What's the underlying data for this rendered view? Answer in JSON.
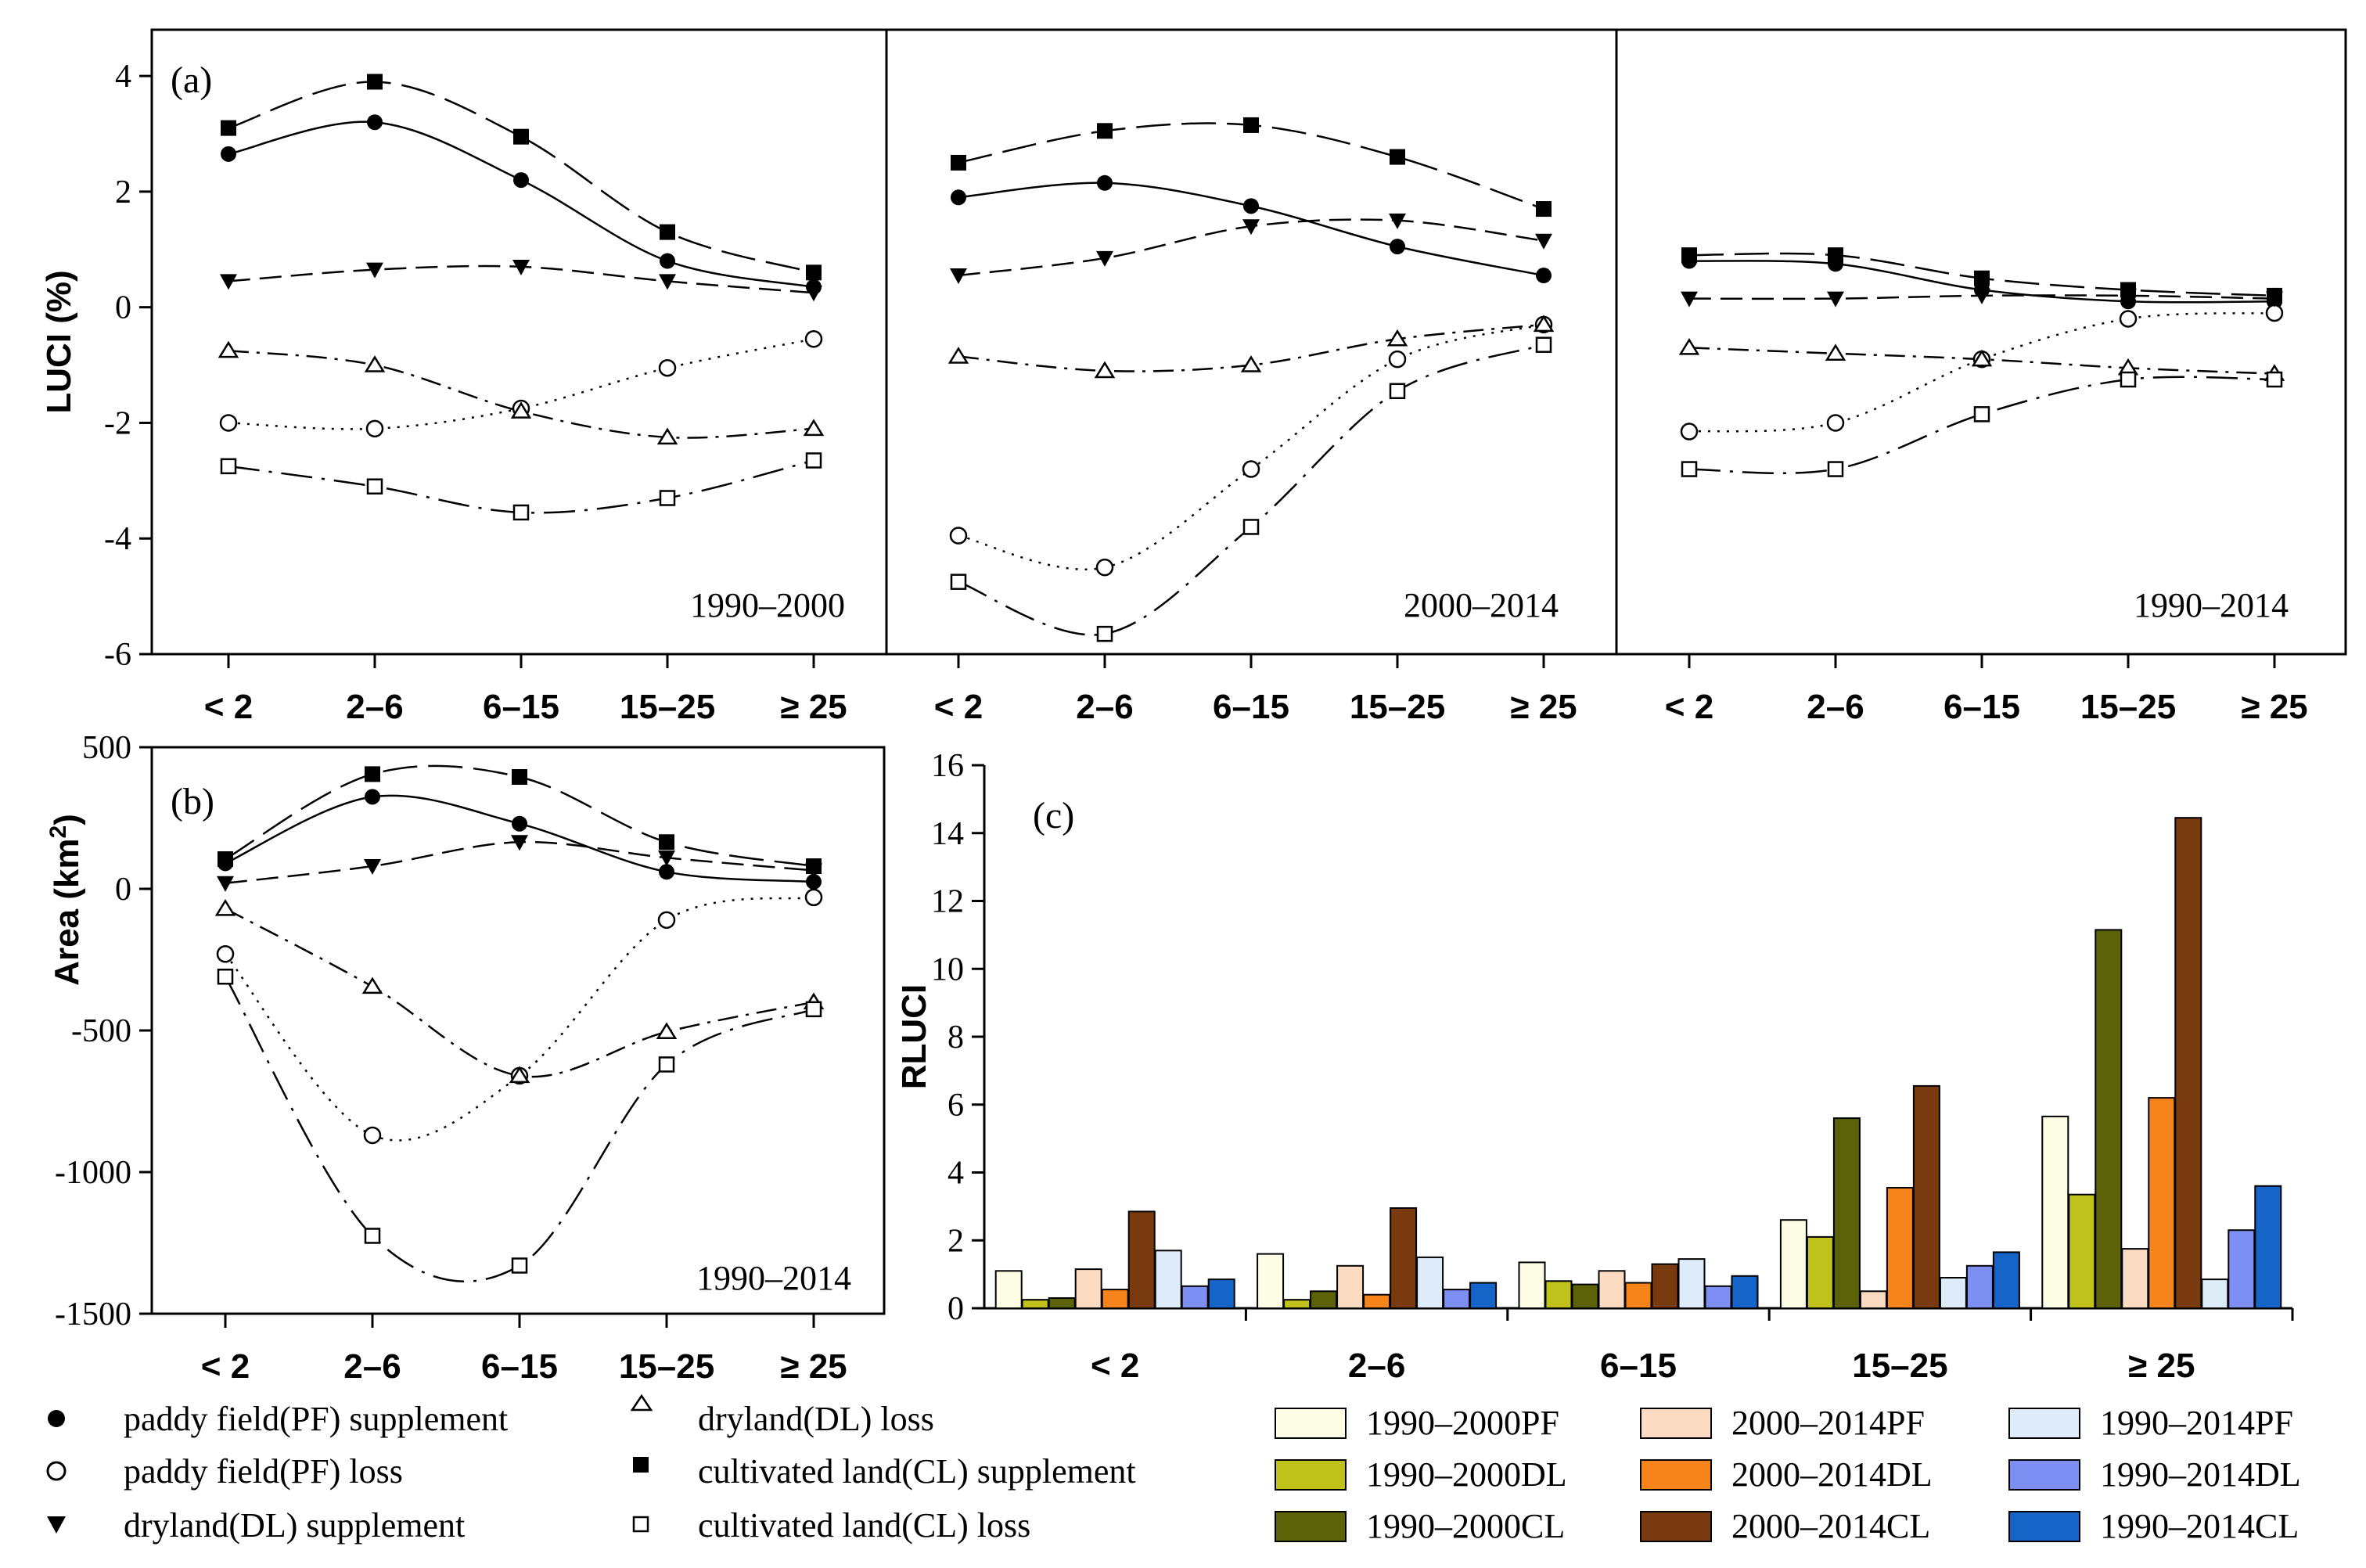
{
  "chart_data": [
    {
      "panel": "(a)",
      "type": "line",
      "ylabel": "LUCI  (%)",
      "ylim": [
        -6,
        4.8
      ],
      "yticks": [
        4,
        2,
        0,
        -2,
        -4,
        -6
      ],
      "categories": [
        "< 2",
        "2–6",
        "6–15",
        "15–25",
        "≥ 25"
      ],
      "subplots": [
        {
          "period": "1990–2000",
          "series": [
            {
              "key": "pf_sup",
              "values": [
                2.65,
                3.2,
                2.2,
                0.8,
                0.35
              ]
            },
            {
              "key": "pf_loss",
              "values": [
                -2.0,
                -2.1,
                -1.75,
                -1.05,
                -0.55
              ]
            },
            {
              "key": "dl_sup",
              "values": [
                0.45,
                0.65,
                0.7,
                0.45,
                0.25
              ]
            },
            {
              "key": "dl_loss",
              "values": [
                -0.75,
                -1.0,
                -1.8,
                -2.25,
                -2.1
              ]
            },
            {
              "key": "cl_sup",
              "values": [
                3.1,
                3.9,
                2.95,
                1.3,
                0.6
              ]
            },
            {
              "key": "cl_loss",
              "values": [
                -2.75,
                -3.1,
                -3.55,
                -3.3,
                -2.65
              ]
            }
          ]
        },
        {
          "period": "2000–2014",
          "series": [
            {
              "key": "pf_sup",
              "values": [
                1.9,
                2.15,
                1.75,
                1.05,
                0.55
              ]
            },
            {
              "key": "pf_loss",
              "values": [
                -3.95,
                -4.5,
                -2.8,
                -0.9,
                -0.3
              ]
            },
            {
              "key": "dl_sup",
              "values": [
                0.55,
                0.85,
                1.4,
                1.5,
                1.15
              ]
            },
            {
              "key": "dl_loss",
              "values": [
                -0.85,
                -1.1,
                -1.0,
                -0.55,
                -0.3
              ]
            },
            {
              "key": "cl_sup",
              "values": [
                2.5,
                3.05,
                3.15,
                2.6,
                1.7
              ]
            },
            {
              "key": "cl_loss",
              "values": [
                -4.75,
                -5.65,
                -3.8,
                -1.45,
                -0.65
              ]
            }
          ]
        },
        {
          "period": "1990–2014",
          "series": [
            {
              "key": "pf_sup",
              "values": [
                0.8,
                0.75,
                0.3,
                0.1,
                0.1
              ]
            },
            {
              "key": "pf_loss",
              "values": [
                -2.15,
                -2.0,
                -0.9,
                -0.2,
                -0.1
              ]
            },
            {
              "key": "dl_sup",
              "values": [
                0.15,
                0.15,
                0.2,
                0.2,
                0.15
              ]
            },
            {
              "key": "dl_loss",
              "values": [
                -0.7,
                -0.8,
                -0.9,
                -1.05,
                -1.15
              ]
            },
            {
              "key": "cl_sup",
              "values": [
                0.9,
                0.9,
                0.5,
                0.3,
                0.2
              ]
            },
            {
              "key": "cl_loss",
              "values": [
                -2.8,
                -2.8,
                -1.85,
                -1.25,
                -1.25
              ]
            }
          ]
        }
      ]
    },
    {
      "panel": "(b)",
      "type": "line",
      "period": "1990–2014",
      "ylabel": "Area (km",
      "ylabel_sup": "2",
      "ylabel_end": ")",
      "ylim": [
        -1500,
        500
      ],
      "yticks": [
        500,
        0,
        -500,
        -1000,
        -1500
      ],
      "categories": [
        "< 2",
        "2–6",
        "6–15",
        "15–25",
        "≥ 25"
      ],
      "series": [
        {
          "key": "pf_sup",
          "values": [
            90,
            325,
            230,
            60,
            25
          ]
        },
        {
          "key": "pf_loss",
          "values": [
            -230,
            -870,
            -660,
            -110,
            -30
          ]
        },
        {
          "key": "dl_sup",
          "values": [
            20,
            80,
            165,
            110,
            65
          ]
        },
        {
          "key": "dl_loss",
          "values": [
            -70,
            -345,
            -660,
            -505,
            -400
          ]
        },
        {
          "key": "cl_sup",
          "values": [
            105,
            405,
            395,
            165,
            80
          ]
        },
        {
          "key": "cl_loss",
          "values": [
            -310,
            -1225,
            -1330,
            -620,
            -425
          ]
        }
      ]
    },
    {
      "panel": "(c)",
      "type": "bar",
      "ylabel": "RLUCI",
      "ylim": [
        0,
        16
      ],
      "yticks": [
        0,
        2,
        4,
        6,
        8,
        10,
        12,
        14,
        16
      ],
      "categories": [
        "< 2",
        "2–6",
        "6–15",
        "15–25",
        "≥ 25"
      ],
      "series": [
        {
          "name": "1990–2000PF",
          "color": "#fdfde6",
          "values": [
            1.1,
            1.6,
            1.35,
            2.6,
            5.65
          ]
        },
        {
          "name": "1990–2000DL",
          "color": "#bfc21a",
          "values": [
            0.25,
            0.25,
            0.8,
            2.1,
            3.35
          ]
        },
        {
          "name": "1990–2000CL",
          "color": "#5c6208",
          "values": [
            0.3,
            0.5,
            0.7,
            5.6,
            11.15
          ]
        },
        {
          "name": "2000–2014PF",
          "color": "#fbdcc2",
          "values": [
            1.15,
            1.25,
            1.1,
            0.5,
            1.75
          ]
        },
        {
          "name": "2000–2014DL",
          "color": "#f6841b",
          "values": [
            0.55,
            0.4,
            0.75,
            3.55,
            6.2
          ]
        },
        {
          "name": "2000–2014CL",
          "color": "#7a3a0f",
          "values": [
            2.85,
            2.95,
            1.3,
            6.55,
            14.45
          ]
        },
        {
          "name": "1990–2014PF",
          "color": "#deebf8",
          "values": [
            1.7,
            1.5,
            1.45,
            0.9,
            0.85
          ]
        },
        {
          "name": "1990–2014DL",
          "color": "#7d8ff2",
          "values": [
            0.65,
            0.55,
            0.65,
            1.25,
            2.3
          ]
        },
        {
          "name": "1990–2014CL",
          "color": "#1565c8",
          "values": [
            0.85,
            0.75,
            0.95,
            1.65,
            3.6
          ]
        }
      ]
    }
  ],
  "line_legend": {
    "pf_sup": "paddy field(PF) supplement",
    "pf_loss": "paddy field(PF) loss",
    "dl_sup": "dryland(DL) supplement",
    "dl_loss": "dryland(DL) loss",
    "cl_sup": "cultivated land(CL) supplement",
    "cl_loss": "cultivated land(CL) loss"
  }
}
